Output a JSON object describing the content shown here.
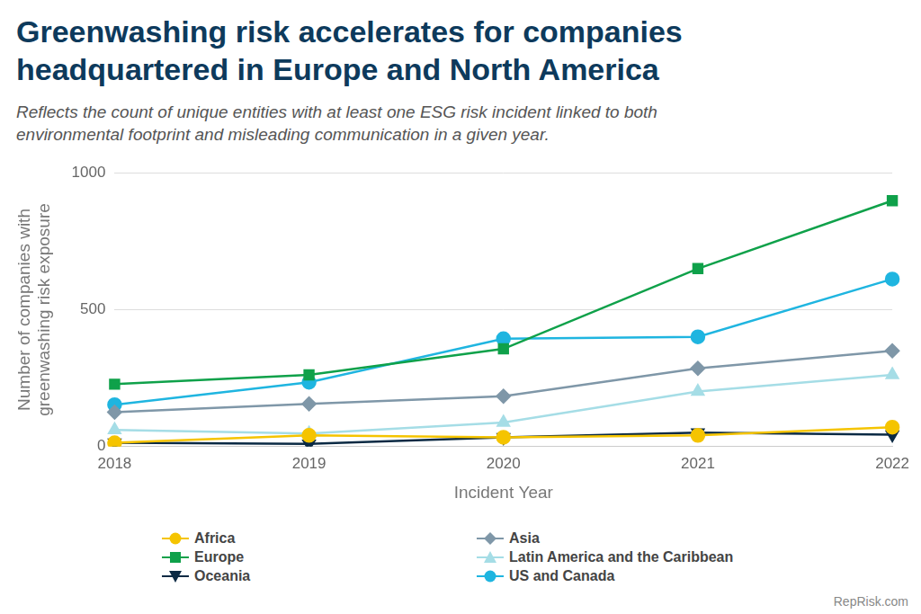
{
  "chart_data": {
    "type": "line",
    "title": "Greenwashing risk accelerates for companies headquartered in Europe and North America",
    "subtitle": "Reflects the count of unique entities with at least one ESG risk incident linked to both environmental footprint and misleading communication in a given year.",
    "x_label": "Incident Year",
    "y_label": "Number of companies with greenwashing risk exposure",
    "source": "RepRisk.com",
    "categories": [
      "2018",
      "2019",
      "2020",
      "2021",
      "2022"
    ],
    "series": [
      {
        "name": "Africa",
        "color": "#f5c400",
        "marker": "circle",
        "values": [
          14,
          41,
          34,
          41,
          71
        ]
      },
      {
        "name": "Asia",
        "color": "#7f97a8",
        "marker": "diamond",
        "values": [
          126,
          156,
          184,
          286,
          350
        ]
      },
      {
        "name": "Europe",
        "color": "#0fa14a",
        "marker": "square",
        "values": [
          228,
          262,
          357,
          650,
          898
        ]
      },
      {
        "name": "Latin America and the Caribbean",
        "color": "#a5dde6",
        "marker": "triangle",
        "values": [
          61,
          48,
          88,
          201,
          262
        ]
      },
      {
        "name": "Oceania",
        "color": "#0b2a44",
        "marker": "triangle-down",
        "values": [
          14,
          10,
          34,
          51,
          44
        ]
      },
      {
        "name": "US and Canada",
        "color": "#1fb5e0",
        "marker": "circle",
        "values": [
          153,
          235,
          394,
          401,
          612
        ]
      }
    ],
    "ylim": [
      0,
      1000
    ],
    "yticks": [
      0,
      500,
      1000
    ],
    "grid": true,
    "legend": "bottom"
  }
}
